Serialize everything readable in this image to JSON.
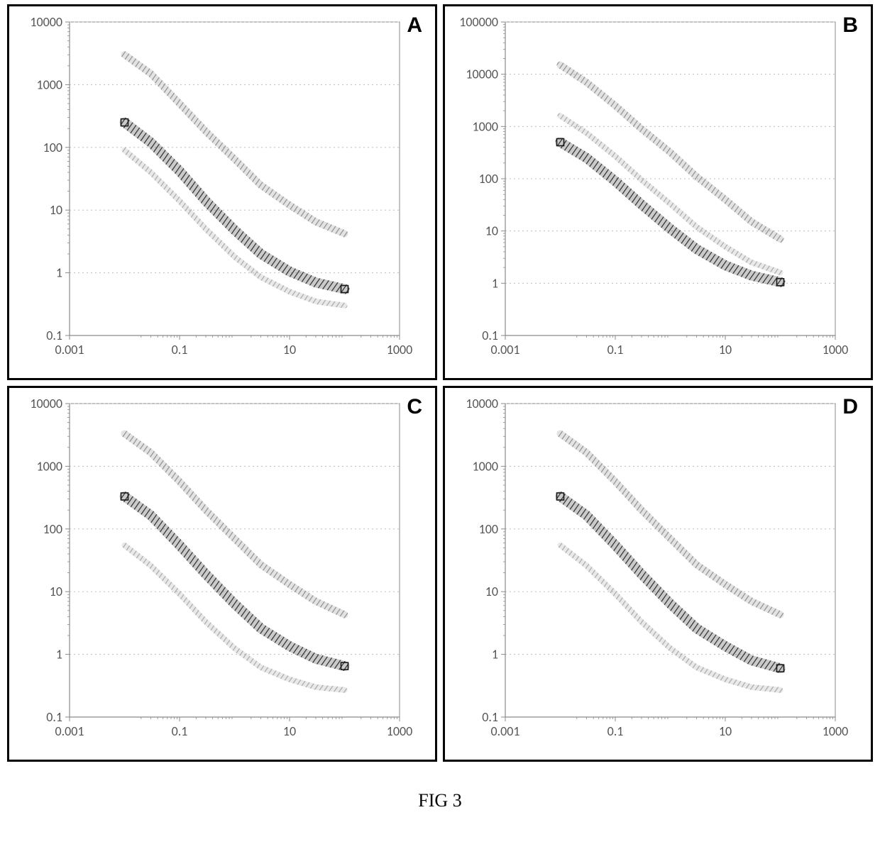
{
  "figure": {
    "caption": "FIG 3",
    "caption_fontsize": 26,
    "panel_letter_fontsize": 30,
    "layout": {
      "rows": 2,
      "cols": 2
    },
    "tick_font": {
      "family": "Calibri, Arial, sans-serif",
      "size": 18,
      "color": "#555555"
    },
    "axis_line_color": "#8a8a8a",
    "grid_color": "#bfbfbf",
    "grid_dash": "2,4",
    "plot_background": "#ffffff",
    "series_stroke_widths": {
      "top": 10,
      "mid": 14,
      "bot": 8
    },
    "series_colors": {
      "top": "#8f8f8f",
      "mid": "#2b2b2b",
      "bot": "#a8a8a8"
    },
    "marker": {
      "size": 10,
      "stroke": "#1a1a1a",
      "fill": "none",
      "stroke_width": 1.6
    },
    "panels": [
      {
        "id": "A",
        "x": {
          "scale": "log",
          "min": 0.001,
          "max": 1000,
          "tick_values": [
            0.001,
            0.1,
            10,
            1000
          ],
          "tick_labels": [
            "0.001",
            "0.1",
            "10",
            "1000"
          ]
        },
        "y": {
          "scale": "log",
          "min": 0.1,
          "max": 10000,
          "tick_values": [
            0.1,
            1,
            10,
            100,
            1000,
            10000
          ],
          "tick_labels": [
            "0.1",
            "1",
            "10",
            "100",
            "1000",
            "10000"
          ]
        },
        "series": {
          "top": [
            [
              0.01,
              3000
            ],
            [
              0.03,
              1500
            ],
            [
              0.1,
              500
            ],
            [
              0.3,
              180
            ],
            [
              1,
              65
            ],
            [
              3,
              25
            ],
            [
              10,
              12
            ],
            [
              30,
              6.5
            ],
            [
              100,
              4.2
            ]
          ],
          "mid": [
            [
              0.01,
              250
            ],
            [
              0.03,
              120
            ],
            [
              0.1,
              42
            ],
            [
              0.3,
              14
            ],
            [
              1,
              4.8
            ],
            [
              3,
              2
            ],
            [
              10,
              1.05
            ],
            [
              30,
              0.7
            ],
            [
              100,
              0.55
            ]
          ],
          "bot": [
            [
              0.01,
              90
            ],
            [
              0.03,
              40
            ],
            [
              0.1,
              14
            ],
            [
              0.3,
              5
            ],
            [
              1,
              1.8
            ],
            [
              3,
              0.85
            ],
            [
              10,
              0.5
            ],
            [
              30,
              0.35
            ],
            [
              100,
              0.3
            ]
          ]
        },
        "markers": {
          "start": [
            0.01,
            250
          ],
          "end": [
            100,
            0.55
          ]
        }
      },
      {
        "id": "B",
        "x": {
          "scale": "log",
          "min": 0.001,
          "max": 1000,
          "tick_values": [
            0.001,
            0.1,
            10,
            1000
          ],
          "tick_labels": [
            "0.001",
            "0.1",
            "10",
            "1000"
          ]
        },
        "y": {
          "scale": "log",
          "min": 0.1,
          "max": 100000,
          "tick_values": [
            0.1,
            1,
            10,
            100,
            1000,
            10000,
            100000
          ],
          "tick_labels": [
            "0.1",
            "1",
            "10",
            "100",
            "1000",
            "10000",
            "100000"
          ]
        },
        "series": {
          "top": [
            [
              0.01,
              15000
            ],
            [
              0.03,
              7000
            ],
            [
              0.1,
              2500
            ],
            [
              0.3,
              900
            ],
            [
              1,
              320
            ],
            [
              3,
              110
            ],
            [
              10,
              40
            ],
            [
              30,
              15
            ],
            [
              100,
              7
            ]
          ],
          "mid": [
            [
              0.01,
              500
            ],
            [
              0.03,
              250
            ],
            [
              0.1,
              90
            ],
            [
              0.3,
              32
            ],
            [
              1,
              11
            ],
            [
              3,
              4.5
            ],
            [
              10,
              2.2
            ],
            [
              30,
              1.4
            ],
            [
              100,
              1.05
            ]
          ],
          "bot": [
            [
              0.01,
              1600
            ],
            [
              0.03,
              750
            ],
            [
              0.1,
              270
            ],
            [
              0.3,
              95
            ],
            [
              1,
              33
            ],
            [
              3,
              12
            ],
            [
              10,
              5
            ],
            [
              30,
              2.5
            ],
            [
              100,
              1.6
            ]
          ]
        },
        "markers": {
          "start": [
            0.01,
            500
          ],
          "end": [
            100,
            1.05
          ]
        }
      },
      {
        "id": "C",
        "x": {
          "scale": "log",
          "min": 0.001,
          "max": 1000,
          "tick_values": [
            0.001,
            0.1,
            10,
            1000
          ],
          "tick_labels": [
            "0.001",
            "0.1",
            "10",
            "1000"
          ]
        },
        "y": {
          "scale": "log",
          "min": 0.1,
          "max": 10000,
          "tick_values": [
            0.1,
            1,
            10,
            100,
            1000,
            10000
          ],
          "tick_labels": [
            "0.1",
            "1",
            "10",
            "100",
            "1000",
            "10000"
          ]
        },
        "series": {
          "top": [
            [
              0.01,
              3300
            ],
            [
              0.03,
              1650
            ],
            [
              0.1,
              570
            ],
            [
              0.3,
              200
            ],
            [
              1,
              70
            ],
            [
              3,
              27
            ],
            [
              10,
              13
            ],
            [
              30,
              7
            ],
            [
              100,
              4.3
            ]
          ],
          "mid": [
            [
              0.01,
              330
            ],
            [
              0.03,
              165
            ],
            [
              0.1,
              55
            ],
            [
              0.3,
              19
            ],
            [
              1,
              6.4
            ],
            [
              3,
              2.6
            ],
            [
              10,
              1.35
            ],
            [
              30,
              0.85
            ],
            [
              100,
              0.65
            ]
          ],
          "bot": [
            [
              0.01,
              55
            ],
            [
              0.03,
              26
            ],
            [
              0.1,
              9.2
            ],
            [
              0.3,
              3.3
            ],
            [
              1,
              1.25
            ],
            [
              3,
              0.62
            ],
            [
              10,
              0.4
            ],
            [
              30,
              0.3
            ],
            [
              100,
              0.27
            ]
          ]
        },
        "markers": {
          "start": [
            0.01,
            330
          ],
          "end": [
            100,
            0.65
          ]
        }
      },
      {
        "id": "D",
        "x": {
          "scale": "log",
          "min": 0.001,
          "max": 1000,
          "tick_values": [
            0.001,
            0.1,
            10,
            1000
          ],
          "tick_labels": [
            "0.001",
            "0.1",
            "10",
            "1000"
          ]
        },
        "y": {
          "scale": "log",
          "min": 0.1,
          "max": 10000,
          "tick_values": [
            0.1,
            1,
            10,
            100,
            1000,
            10000
          ],
          "tick_labels": [
            "0.1",
            "1",
            "10",
            "100",
            "1000",
            "10000"
          ]
        },
        "series": {
          "top": [
            [
              0.01,
              3300
            ],
            [
              0.03,
              1650
            ],
            [
              0.1,
              570
            ],
            [
              0.3,
              200
            ],
            [
              1,
              70
            ],
            [
              3,
              27
            ],
            [
              10,
              13
            ],
            [
              30,
              7
            ],
            [
              100,
              4.3
            ]
          ],
          "mid": [
            [
              0.01,
              330
            ],
            [
              0.03,
              165
            ],
            [
              0.1,
              55
            ],
            [
              0.3,
              19
            ],
            [
              1,
              6.4
            ],
            [
              3,
              2.6
            ],
            [
              10,
              1.35
            ],
            [
              30,
              0.8
            ],
            [
              100,
              0.6
            ]
          ],
          "bot": [
            [
              0.01,
              55
            ],
            [
              0.03,
              26
            ],
            [
              0.1,
              9.2
            ],
            [
              0.3,
              3.3
            ],
            [
              1,
              1.25
            ],
            [
              3,
              0.62
            ],
            [
              10,
              0.4
            ],
            [
              30,
              0.3
            ],
            [
              100,
              0.27
            ]
          ]
        },
        "markers": {
          "start": [
            0.01,
            330
          ],
          "end": [
            100,
            0.6
          ]
        }
      }
    ]
  }
}
